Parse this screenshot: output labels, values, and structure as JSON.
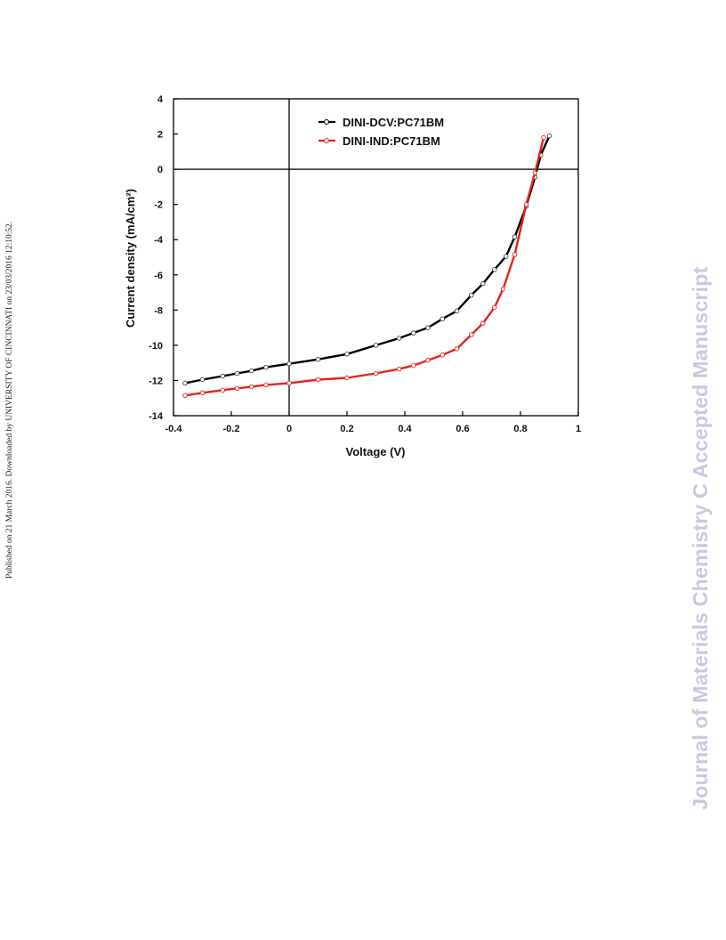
{
  "watermark": {
    "published_line": "Published on 21 March 2016. Downloaded by UNIVERSITY OF CINCINNATI on 23/03/2016 12:10:52.",
    "journal_line": "Journal of Materials Chemistry C Accepted Manuscript",
    "journal_color": "#c9c9e0"
  },
  "chart_data": {
    "type": "line",
    "xlabel": "Voltage (V)",
    "ylabel": "Current density (mA/cm²)",
    "xlim": [
      -0.4,
      1.0
    ],
    "ylim": [
      -14,
      4
    ],
    "xticks": [
      "-0.4",
      "-0.2",
      "0",
      "0.2",
      "0.4",
      "0.6",
      "0.8",
      "1"
    ],
    "yticks": [
      "4",
      "2",
      "0",
      "-2",
      "-4",
      "-6",
      "-8",
      "-10",
      "-12",
      "-14"
    ],
    "grid": false,
    "legend_position": "top-left",
    "series": [
      {
        "name": "DINI-DCV:PC71BM",
        "color": "#000000",
        "x": [
          -0.36,
          -0.3,
          -0.23,
          -0.18,
          -0.13,
          -0.08,
          0.0,
          0.1,
          0.2,
          0.3,
          0.38,
          0.43,
          0.48,
          0.53,
          0.58,
          0.63,
          0.67,
          0.71,
          0.75,
          0.78,
          0.82,
          0.85,
          0.87,
          0.9
        ],
        "y": [
          -12.15,
          -11.95,
          -11.75,
          -11.6,
          -11.45,
          -11.25,
          -11.05,
          -10.8,
          -10.5,
          -10.0,
          -9.6,
          -9.3,
          -9.0,
          -8.5,
          -8.05,
          -7.15,
          -6.5,
          -5.7,
          -4.95,
          -3.85,
          -2.1,
          -0.45,
          0.8,
          1.9
        ]
      },
      {
        "name": "DINI-IND:PC71BM",
        "color": "#e8211c",
        "x": [
          -0.36,
          -0.3,
          -0.23,
          -0.18,
          -0.13,
          -0.08,
          0.0,
          0.1,
          0.2,
          0.3,
          0.38,
          0.43,
          0.48,
          0.53,
          0.58,
          0.63,
          0.67,
          0.71,
          0.74,
          0.78,
          0.82,
          0.85,
          0.88
        ],
        "y": [
          -12.85,
          -12.7,
          -12.55,
          -12.45,
          -12.35,
          -12.25,
          -12.15,
          -11.95,
          -11.85,
          -11.6,
          -11.35,
          -11.15,
          -10.85,
          -10.55,
          -10.2,
          -9.4,
          -8.75,
          -7.85,
          -6.8,
          -4.85,
          -2.0,
          -0.2,
          1.8
        ]
      }
    ]
  }
}
